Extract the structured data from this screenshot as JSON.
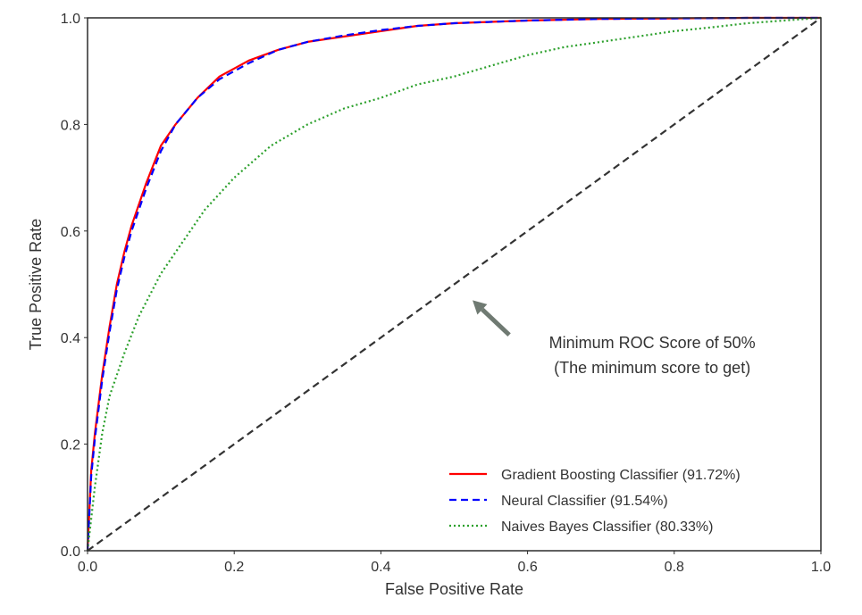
{
  "chart_data": {
    "type": "line",
    "title": "",
    "xlabel": "False Positive Rate",
    "ylabel": "True Positive Rate",
    "xlim": [
      0.0,
      1.0
    ],
    "ylim": [
      0.0,
      1.0
    ],
    "xticks": [
      0.0,
      0.2,
      0.4,
      0.6,
      0.8,
      1.0
    ],
    "yticks": [
      0.0,
      0.2,
      0.4,
      0.6,
      0.8,
      1.0
    ],
    "xtick_labels": [
      "0.0",
      "0.2",
      "0.4",
      "0.6",
      "0.8",
      "1.0"
    ],
    "ytick_labels": [
      "0.0",
      "0.2",
      "0.4",
      "0.6",
      "0.8",
      "1.0"
    ],
    "grid": false,
    "legend_position": "bottom-right",
    "series": [
      {
        "name": "Gradient Boosting Classifier (91.72%)",
        "color": "#ff0000",
        "style": "solid",
        "x": [
          0.0,
          0.005,
          0.01,
          0.02,
          0.03,
          0.04,
          0.05,
          0.06,
          0.08,
          0.1,
          0.12,
          0.15,
          0.18,
          0.22,
          0.26,
          0.3,
          0.35,
          0.4,
          0.45,
          0.5,
          0.6,
          0.7,
          0.8,
          0.9,
          1.0
        ],
        "y": [
          0.0,
          0.15,
          0.22,
          0.33,
          0.42,
          0.5,
          0.56,
          0.61,
          0.69,
          0.76,
          0.8,
          0.85,
          0.89,
          0.92,
          0.94,
          0.955,
          0.965,
          0.975,
          0.985,
          0.99,
          0.995,
          0.998,
          0.999,
          1.0,
          1.0
        ]
      },
      {
        "name": "Neural Classifier (91.54%)",
        "color": "#0000ff",
        "style": "dashed",
        "x": [
          0.0,
          0.005,
          0.01,
          0.02,
          0.03,
          0.04,
          0.05,
          0.06,
          0.08,
          0.1,
          0.12,
          0.15,
          0.18,
          0.22,
          0.26,
          0.3,
          0.35,
          0.4,
          0.45,
          0.5,
          0.6,
          0.7,
          0.8,
          0.9,
          1.0
        ],
        "y": [
          0.0,
          0.14,
          0.21,
          0.32,
          0.41,
          0.49,
          0.55,
          0.6,
          0.68,
          0.75,
          0.8,
          0.85,
          0.885,
          0.915,
          0.94,
          0.955,
          0.967,
          0.977,
          0.985,
          0.99,
          0.995,
          0.998,
          0.999,
          1.0,
          1.0
        ]
      },
      {
        "name": "Naives Bayes Classifier (80.33%)",
        "color": "#2ca02c",
        "style": "dotted",
        "x": [
          0.0,
          0.01,
          0.02,
          0.03,
          0.05,
          0.07,
          0.1,
          0.13,
          0.16,
          0.2,
          0.25,
          0.3,
          0.35,
          0.4,
          0.45,
          0.5,
          0.55,
          0.6,
          0.65,
          0.7,
          0.75,
          0.8,
          0.85,
          0.9,
          0.95,
          1.0
        ],
        "y": [
          0.0,
          0.12,
          0.22,
          0.29,
          0.37,
          0.44,
          0.52,
          0.58,
          0.64,
          0.7,
          0.76,
          0.8,
          0.83,
          0.85,
          0.875,
          0.89,
          0.91,
          0.93,
          0.945,
          0.955,
          0.965,
          0.975,
          0.982,
          0.99,
          0.995,
          1.0
        ]
      },
      {
        "color": "#333333",
        "style": "dashed",
        "x": [
          0.0,
          1.0
        ],
        "y": [
          0.0,
          1.0
        ]
      }
    ],
    "annotations": [
      {
        "lines": [
          "Minimum ROC Score of 50%",
          "(The minimum score to get)"
        ],
        "text_x": 0.77,
        "text_y": 0.38,
        "arrow_from_x": 0.575,
        "arrow_from_y": 0.405,
        "arrow_to_x": 0.525,
        "arrow_to_y": 0.47,
        "arrow_color": "#6f7a72"
      }
    ]
  }
}
